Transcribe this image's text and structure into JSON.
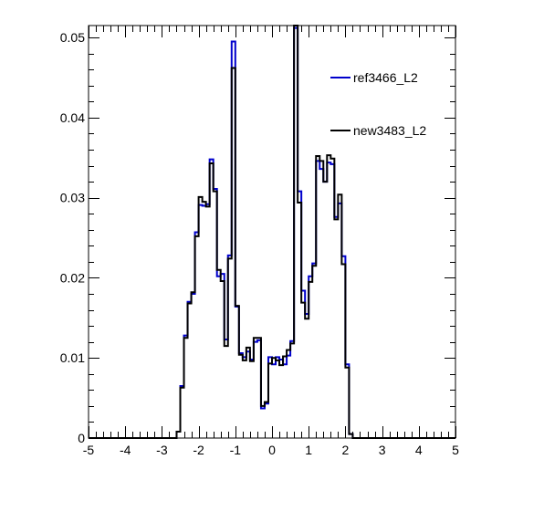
{
  "chart_data": {
    "type": "line",
    "style": "step-histogram",
    "title": "",
    "xlabel": "",
    "ylabel": "",
    "xlim": [
      -5,
      5
    ],
    "ylim": [
      0,
      0.0515
    ],
    "grid": false,
    "legend_position": "top-right",
    "xticks": [
      "-5",
      "-4",
      "-3",
      "-2",
      "-1",
      "0",
      "1",
      "2",
      "3",
      "4",
      "5"
    ],
    "yticks": [
      "0",
      "0.01",
      "0.02",
      "0.03",
      "0.04",
      "0.05"
    ],
    "bin_width": 0.1,
    "x": [
      -5.0,
      -4.9,
      -4.8,
      -4.7,
      -4.6,
      -4.5,
      -4.4,
      -4.3,
      -4.2,
      -4.1,
      -4.0,
      -3.9,
      -3.8,
      -3.7,
      -3.6,
      -3.5,
      -3.4,
      -3.3,
      -3.2,
      -3.1,
      -3.0,
      -2.9,
      -2.8,
      -2.7,
      -2.6,
      -2.5,
      -2.4,
      -2.3,
      -2.2,
      -2.1,
      -2.0,
      -1.9,
      -1.8,
      -1.7,
      -1.6,
      -1.5,
      -1.4,
      -1.3,
      -1.2,
      -1.1,
      -1.0,
      -0.9,
      -0.8,
      -0.7,
      -0.6,
      -0.5,
      -0.4,
      -0.3,
      -0.2,
      -0.1,
      0.0,
      0.1,
      0.2,
      0.3,
      0.4,
      0.5,
      0.6,
      0.7,
      0.8,
      0.9,
      1.0,
      1.1,
      1.2,
      1.3,
      1.4,
      1.5,
      1.6,
      1.7,
      1.8,
      1.9,
      2.0,
      2.1,
      2.2,
      2.3,
      2.4,
      2.5,
      2.6,
      2.7,
      2.8,
      2.9,
      3.0,
      3.1,
      3.2,
      3.3,
      3.4,
      3.5,
      3.6,
      3.7,
      3.8,
      3.9,
      4.0,
      4.1,
      4.2,
      4.3,
      4.4,
      4.5,
      4.6,
      4.7,
      4.8,
      4.9
    ],
    "series": [
      {
        "name": "ref3466_L2",
        "color": "#0000cc",
        "values": [
          0,
          0,
          0,
          0,
          0,
          0,
          0,
          0,
          0,
          0,
          0,
          0,
          0,
          0,
          0,
          0,
          0,
          0,
          0,
          0,
          0,
          0,
          0,
          0,
          0.0008,
          0.0065,
          0.0128,
          0.017,
          0.018,
          0.0257,
          0.0291,
          0.029,
          0.0292,
          0.0348,
          0.0311,
          0.0202,
          0.0205,
          0.0123,
          0.0228,
          0.0495,
          0.0164,
          0.0106,
          0.0101,
          0.0108,
          0.0098,
          0.012,
          0.0122,
          0.0037,
          0.0043,
          0.0101,
          0.0092,
          0.0101,
          0.0098,
          0.0092,
          0.0103,
          0.0121,
          0.0512,
          0.0308,
          0.0184,
          0.0155,
          0.0202,
          0.0218,
          0.0346,
          0.0336,
          0.032,
          0.0344,
          0.0342,
          0.0276,
          0.0293,
          0.0227,
          0.0092,
          0.0005,
          0,
          0,
          0,
          0,
          0,
          0,
          0,
          0,
          0,
          0,
          0,
          0,
          0,
          0,
          0,
          0,
          0,
          0,
          0,
          0,
          0,
          0,
          0,
          0,
          0,
          0,
          0,
          0
        ]
      },
      {
        "name": "new3483_L2",
        "color": "#000000",
        "values": [
          0,
          0,
          0,
          0,
          0,
          0,
          0,
          0,
          0,
          0,
          0,
          0,
          0,
          0,
          0,
          0,
          0,
          0,
          0,
          0,
          0,
          0,
          0,
          0,
          0.0008,
          0.0063,
          0.0125,
          0.0168,
          0.0182,
          0.0252,
          0.0301,
          0.0295,
          0.0289,
          0.0343,
          0.0308,
          0.021,
          0.0196,
          0.0115,
          0.0224,
          0.0462,
          0.0165,
          0.0104,
          0.0097,
          0.0113,
          0.0096,
          0.0125,
          0.0125,
          0.004,
          0.0045,
          0.0093,
          0.01,
          0.0097,
          0.0091,
          0.0102,
          0.011,
          0.0118,
          0.0515,
          0.0294,
          0.0169,
          0.0149,
          0.0195,
          0.0215,
          0.0352,
          0.0346,
          0.032,
          0.0353,
          0.0349,
          0.0273,
          0.0304,
          0.0217,
          0.0088,
          0.0005,
          0,
          0,
          0,
          0,
          0,
          0,
          0,
          0,
          0,
          0,
          0,
          0,
          0,
          0,
          0,
          0,
          0,
          0,
          0,
          0,
          0,
          0,
          0,
          0,
          0,
          0,
          0,
          0
        ]
      }
    ]
  }
}
